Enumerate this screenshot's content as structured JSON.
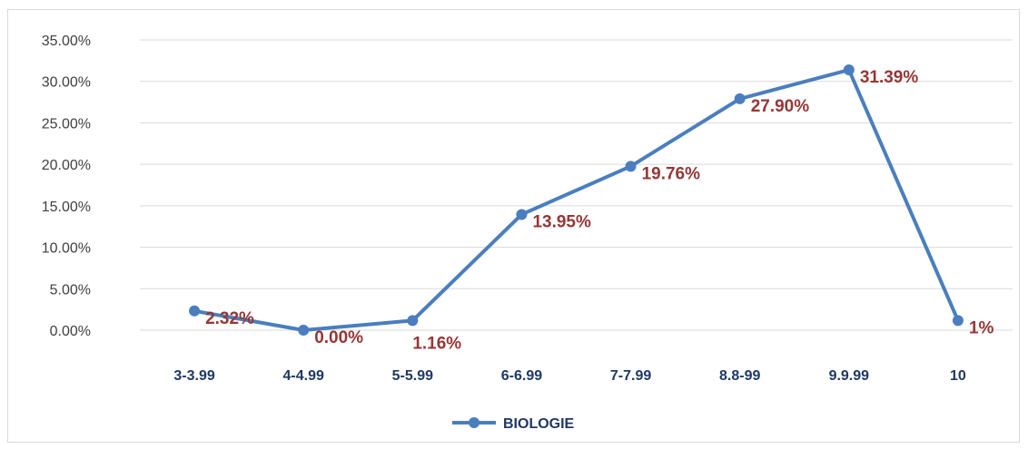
{
  "chart_data": {
    "type": "line",
    "categories": [
      "3-3.99",
      "4-4.99",
      "5-5.99",
      "6-6.99",
      "7-7.99",
      "8.8-99",
      "9.9.99",
      "10"
    ],
    "series": [
      {
        "name": "BIOLOGIE",
        "values": [
          2.32,
          0.0,
          1.16,
          13.95,
          19.76,
          27.9,
          31.39,
          1.16
        ],
        "data_labels": [
          "2.32%",
          "0.00%",
          "1.16%",
          "13.95%",
          "19.76%",
          "27.90%",
          "31.39%",
          "1%"
        ]
      }
    ],
    "y_ticks": [
      "0.00%",
      "5.00%",
      "10.00%",
      "15.00%",
      "20.00%",
      "25.00%",
      "30.00%",
      "35.00%"
    ],
    "ylim": [
      0,
      35
    ],
    "grid": true,
    "legend_position": "bottom",
    "colors": {
      "line": "#4a7ebf",
      "label": "#953735",
      "tick_x": "#1f3864",
      "tick_y": "#404040",
      "grid": "#d9d9d9"
    }
  }
}
